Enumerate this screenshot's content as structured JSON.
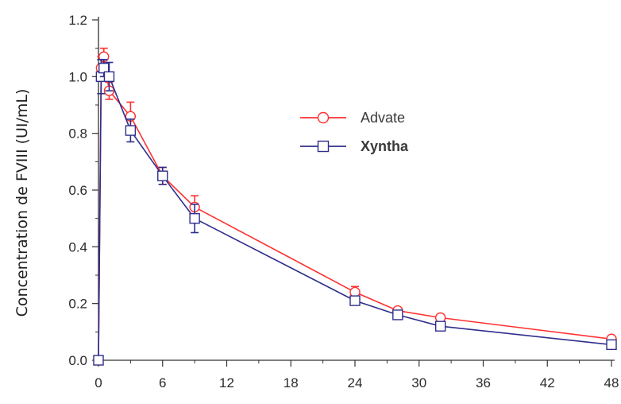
{
  "chart_data": {
    "type": "line",
    "title": "",
    "xlabel": "",
    "ylabel": "Concentration de FVIII (UI/mL)",
    "xlim": [
      0,
      48
    ],
    "ylim": [
      0,
      1.2
    ],
    "x_ticks": [
      0,
      6,
      12,
      18,
      24,
      30,
      36,
      42,
      48
    ],
    "y_ticks": [
      0.0,
      0.2,
      0.4,
      0.6,
      0.8,
      1.0,
      1.2
    ],
    "x_tick_labels": [
      "0",
      "6",
      "12",
      "18",
      "24",
      "30",
      "36",
      "42",
      "48"
    ],
    "y_tick_labels": [
      "0.0",
      "0.2",
      "0.4",
      "0.6",
      "0.8",
      "1.0",
      "1.2"
    ],
    "grid": false,
    "legend_position": "center-right",
    "series": [
      {
        "name": "Advate",
        "color": "#ff3030",
        "marker": "circle",
        "x": [
          0,
          0.25,
          0.5,
          1,
          3,
          6,
          9,
          24,
          28,
          32,
          48
        ],
        "y": [
          0.0,
          1.03,
          1.07,
          0.95,
          0.86,
          0.65,
          0.54,
          0.24,
          0.175,
          0.15,
          0.075
        ],
        "err": [
          0,
          0.04,
          0.03,
          0.03,
          0.05,
          0.03,
          0.04,
          0.02,
          0.01,
          0.01,
          0.01
        ]
      },
      {
        "name": "Xyntha",
        "color": "#2e2e8c",
        "marker": "square",
        "x": [
          0,
          0.25,
          0.5,
          1,
          3,
          6,
          9,
          24,
          28,
          32,
          48
        ],
        "y": [
          0.0,
          1.0,
          1.03,
          1.0,
          0.81,
          0.65,
          0.5,
          0.21,
          0.16,
          0.12,
          0.055
        ],
        "err": [
          0,
          0.06,
          0.03,
          0.05,
          0.04,
          0.03,
          0.05,
          0.015,
          0.01,
          0.01,
          0.01
        ]
      }
    ]
  }
}
